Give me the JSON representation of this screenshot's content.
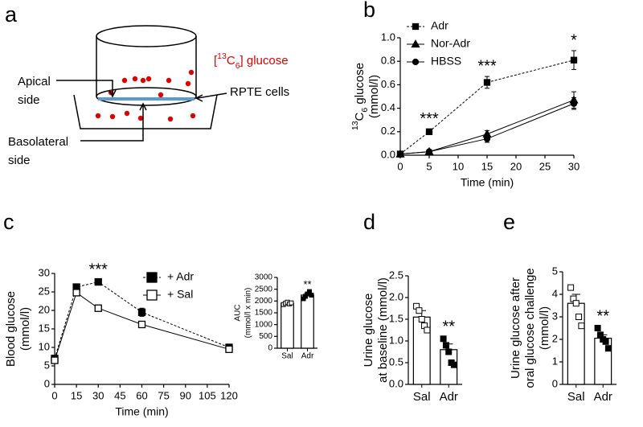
{
  "diagram": {
    "label": "a",
    "glucose_label": [
      "[",
      "13",
      "C",
      "6",
      "] glucose"
    ],
    "apical": [
      "Apical",
      "side"
    ],
    "cells": "RPTE cells",
    "basolateral": [
      "Basolateral",
      "side"
    ]
  },
  "chart_data": [
    {
      "type": "line",
      "label": "b",
      "xlabel": "Time (min)",
      "ylabel": [
        [
          "13",
          "C",
          "6",
          " glucose"
        ],
        "(mmol/l)"
      ],
      "x": [
        0,
        5,
        15,
        30
      ],
      "xlim": [
        0,
        30
      ],
      "xticks": [
        0,
        5,
        10,
        15,
        20,
        25,
        30
      ],
      "ylim": [
        0,
        1.0
      ],
      "yticks": [
        {
          "value": 0,
          "label": "0.0"
        },
        0.2,
        0.4,
        0.6,
        0.8,
        {
          "value": 1.0,
          "label": "1.0"
        }
      ],
      "series": [
        {
          "name": "Adr",
          "color": "#000000",
          "marker": "square",
          "fill": "#000000",
          "dash": true,
          "values": [
            0.01,
            0.2,
            0.62,
            0.81
          ],
          "errors": [
            0.01,
            0.02,
            0.05,
            0.08
          ]
        },
        {
          "name": "Nor-Adr",
          "color": "#000000",
          "marker": "triangle",
          "fill": "#000000",
          "dash": false,
          "values": [
            0.01,
            0.03,
            0.18,
            0.47
          ],
          "errors": [
            0.005,
            0.01,
            0.03,
            0.07
          ]
        },
        {
          "name": "HBSS",
          "color": "#000000",
          "marker": "circle",
          "fill": "#000000",
          "dash": false,
          "values": [
            0.01,
            0.03,
            0.14,
            0.44
          ],
          "errors": [
            0.005,
            0.01,
            0.03,
            0.05
          ]
        }
      ],
      "annotations": [
        {
          "text": "***",
          "x": 5
        },
        {
          "text": "***",
          "x": 15
        },
        {
          "text": "*",
          "x": 30
        }
      ],
      "legend": "top-left"
    },
    {
      "type": "line",
      "label": "c",
      "xlabel": "Time (min)",
      "ylabel": [
        "Blood glucose",
        "(mmol/l)"
      ],
      "x": [
        0,
        15,
        30,
        60,
        120
      ],
      "xlim": [
        0,
        120
      ],
      "xticks": [
        0,
        15,
        30,
        45,
        60,
        75,
        90,
        105,
        120
      ],
      "ylim": [
        0,
        30
      ],
      "yticks": [
        0,
        5,
        10,
        15,
        20,
        25,
        30
      ],
      "series": [
        {
          "name": "+ Adr",
          "color": "#000000",
          "marker": "square",
          "fill": "#000000",
          "dash": true,
          "values": [
            7,
            26.3,
            27.7,
            19.5,
            10
          ],
          "errors": [
            0.6,
            0.6,
            0.5,
            1.1,
            0.5
          ]
        },
        {
          "name": "+ Sal",
          "color": "#000000",
          "marker": "square",
          "fill": "#ffffff",
          "dash": false,
          "values": [
            6.5,
            24.8,
            20.6,
            16.2,
            9.5
          ],
          "errors": [
            0.5,
            0.6,
            0.6,
            0.5,
            0.4
          ]
        }
      ],
      "annotations": [
        {
          "text": "***",
          "x": 30
        }
      ],
      "legend": "top-right"
    },
    {
      "type": "bar",
      "ylabel": [
        "AUC",
        "(mmol/l x min)"
      ],
      "categories": [
        "Sal",
        "Adr"
      ],
      "values": [
        1900,
        2250
      ],
      "errors": [
        50,
        80
      ],
      "points": [
        [
          1850,
          1900,
          1950,
          1880,
          1920
        ],
        [
          2100,
          2200,
          2300,
          2400,
          2250
        ]
      ],
      "point_fill": [
        "#ffffff",
        "#000000"
      ],
      "ylim": [
        0,
        3000
      ],
      "yticks": [
        0,
        500,
        1000,
        1500,
        2000,
        2500,
        3000
      ],
      "annotations": [
        {
          "text": "**",
          "x": "Adr"
        }
      ]
    },
    {
      "type": "bar",
      "label": "d",
      "ylabel": [
        "Urine glucose",
        "at baseline (mmol/l)"
      ],
      "categories": [
        "Sal",
        "Adr"
      ],
      "values": [
        1.55,
        0.8
      ],
      "errors": [
        0.15,
        0.13
      ],
      "points": [
        [
          1.8,
          1.7,
          1.5,
          1.35,
          1.25
        ],
        [
          1.05,
          0.9,
          0.75,
          0.5,
          0.45
        ]
      ],
      "point_fill": [
        "#ffffff",
        "#000000"
      ],
      "ylim": [
        0,
        2.5
      ],
      "yticks": [
        {
          "value": 0,
          "label": "0.0"
        },
        0.5,
        {
          "value": 1.0,
          "label": "1.0"
        },
        1.5,
        {
          "value": 2.0,
          "label": "2.0"
        },
        2.5
      ],
      "annotations": [
        {
          "text": "**",
          "x": "Adr"
        }
      ]
    },
    {
      "type": "bar",
      "label": "e",
      "ylabel": [
        "Urine glucose after",
        "oral glucose challenge",
        "(mmol/l)"
      ],
      "categories": [
        "Sal",
        "Adr"
      ],
      "values": [
        3.6,
        2.05
      ],
      "errors": [
        0.4,
        0.15
      ],
      "points": [
        [
          4.3,
          3.8,
          3.6,
          3.0,
          2.6
        ],
        [
          2.5,
          2.2,
          2.0,
          1.9,
          1.6
        ]
      ],
      "point_fill": [
        "#ffffff",
        "#000000"
      ],
      "ylim": [
        0,
        5
      ],
      "yticks": [
        0,
        1,
        2,
        3,
        4,
        5
      ],
      "annotations": [
        {
          "text": "**",
          "x": "Adr"
        }
      ]
    }
  ]
}
